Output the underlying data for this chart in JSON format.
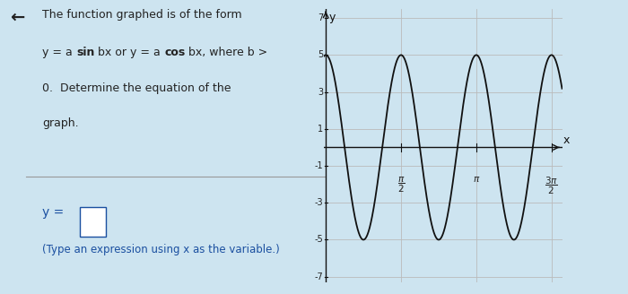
{
  "amplitude": 5,
  "b": 4,
  "func": "cos",
  "y_min": -7,
  "y_max": 7,
  "y_ticks": [
    -7,
    -5,
    -3,
    -1,
    1,
    3,
    5,
    7
  ],
  "y_tick_labels": [
    "-7",
    "-5",
    "-3",
    "-1",
    "1",
    "3",
    "5",
    "7"
  ],
  "title_lines": [
    "The function graphed is of the form",
    "y = a sin bx or y = a cos bx, where b >",
    "0.  Determine the equation of the",
    "graph."
  ],
  "answer_line": "y =",
  "note_line": "(Type an expression using x as the variable.)",
  "bg_color": "#cde4f0",
  "graph_bg": "#e8e8e8",
  "curve_color": "#111111",
  "grid_color": "#bbbbbb",
  "axis_color": "#111111",
  "text_color": "#222222",
  "answer_color": "#1a4fa0",
  "pi_val": 3.14159265358979
}
